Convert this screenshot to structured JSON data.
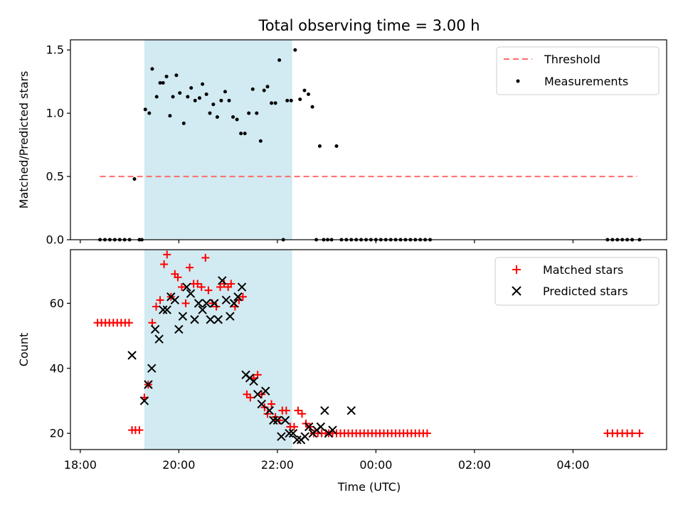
{
  "chart_data": {
    "title": "Total observing time = 3.00 h",
    "xlabel": "Time (UTC)",
    "x_ticks": [
      "18:00",
      "20:00",
      "22:00",
      "00:00",
      "02:00",
      "04:00"
    ],
    "x_ticks_hours": [
      18,
      20,
      22,
      24,
      26,
      28
    ],
    "xlim_hours": [
      17.8,
      29.9
    ],
    "shaded_span_hours": [
      19.3,
      22.3
    ],
    "shade_color": "#add8e6",
    "panels": [
      {
        "type": "scatter",
        "ylabel": "Matched/Predicted stars",
        "ylim": [
          0,
          1.58
        ],
        "y_ticks": [
          0.0,
          0.5,
          1.0,
          1.5
        ],
        "y_tick_labels": [
          "0.0",
          "0.5",
          "1.0",
          "1.5"
        ],
        "legend_position": "top-right",
        "legend": [
          "Threshold",
          "Measurements"
        ],
        "threshold": {
          "name": "Threshold",
          "value": 0.5,
          "x_range_hours": [
            18.4,
            29.3
          ],
          "color": "#ff6b6b",
          "style": "dashed"
        },
        "measurements": {
          "name": "Measurements",
          "color": "#000000",
          "x": [
            18.4,
            18.5,
            18.6,
            18.7,
            18.8,
            18.9,
            19.0,
            19.1,
            19.2,
            19.25,
            19.32,
            19.4,
            19.46,
            19.55,
            19.62,
            19.68,
            19.75,
            19.82,
            19.88,
            19.95,
            20.02,
            20.1,
            20.18,
            20.25,
            20.33,
            20.42,
            20.48,
            20.56,
            20.63,
            20.7,
            20.78,
            20.86,
            20.94,
            21.02,
            21.1,
            21.18,
            21.26,
            21.34,
            21.42,
            21.5,
            21.58,
            21.66,
            21.73,
            21.8,
            21.88,
            21.96,
            22.04,
            22.12,
            22.2,
            22.28,
            22.36,
            22.46,
            22.55,
            22.63,
            22.71,
            22.79,
            22.86,
            22.94,
            23.02,
            23.1,
            23.2,
            23.3,
            23.4,
            23.5,
            23.6,
            23.7,
            23.8,
            23.9,
            24.0,
            24.1,
            24.2,
            24.3,
            24.4,
            24.5,
            24.6,
            24.7,
            24.8,
            24.9,
            25.0,
            25.1,
            28.7,
            28.8,
            28.9,
            29.0,
            29.1,
            29.2,
            29.35
          ],
          "y": [
            0,
            0,
            0,
            0,
            0,
            0,
            0,
            0.48,
            0,
            0,
            1.03,
            1.0,
            1.35,
            1.13,
            1.24,
            1.24,
            1.29,
            0.98,
            1.13,
            1.3,
            1.16,
            0.92,
            1.13,
            1.2,
            1.1,
            1.12,
            1.23,
            1.15,
            1.0,
            1.07,
            0.97,
            1.1,
            1.17,
            1.1,
            0.97,
            0.95,
            0.84,
            0.84,
            1.0,
            1.19,
            1.0,
            0.78,
            1.18,
            1.21,
            1.08,
            1.08,
            1.42,
            0,
            1.1,
            1.1,
            1.5,
            1.11,
            1.18,
            1.15,
            1.05,
            0,
            0.74,
            0,
            0,
            0,
            0.74,
            0,
            0,
            0,
            0,
            0,
            0,
            0,
            0,
            0,
            0,
            0,
            0,
            0,
            0,
            0,
            0,
            0,
            0,
            0,
            0,
            0,
            0,
            0,
            0,
            0,
            0
          ]
        }
      },
      {
        "type": "scatter",
        "ylabel": "Count",
        "ylim": [
          15,
          76.5
        ],
        "y_ticks": [
          20,
          40,
          60
        ],
        "y_tick_labels": [
          "20",
          "40",
          "60"
        ],
        "legend_position": "top-right",
        "legend": [
          "Matched stars",
          "Predicted stars"
        ],
        "series": [
          {
            "name": "Matched stars",
            "marker": "plus",
            "color": "#ff0000",
            "x": [
              18.35,
              18.43,
              18.51,
              18.59,
              18.67,
              18.75,
              18.83,
              18.91,
              18.99,
              19.05,
              19.12,
              19.2,
              19.3,
              19.38,
              19.46,
              19.54,
              19.62,
              19.7,
              19.76,
              19.84,
              19.92,
              19.98,
              20.06,
              20.14,
              20.22,
              20.3,
              20.38,
              20.46,
              20.54,
              20.6,
              20.68,
              20.76,
              20.84,
              20.92,
              21.0,
              21.06,
              21.14,
              21.22,
              21.3,
              21.38,
              21.45,
              21.52,
              21.6,
              21.68,
              21.74,
              21.8,
              21.88,
              21.96,
              22.04,
              22.1,
              22.18,
              22.26,
              22.34,
              22.42,
              22.5,
              22.58,
              22.66,
              22.74,
              22.82,
              22.9,
              22.98,
              23.04,
              23.12,
              23.2,
              23.28,
              23.36,
              23.44,
              23.52,
              23.6,
              23.68,
              23.76,
              23.84,
              23.92,
              24.0,
              24.08,
              24.16,
              24.24,
              24.32,
              24.4,
              24.48,
              24.56,
              24.64,
              24.72,
              24.8,
              24.88,
              24.96,
              25.04,
              28.7,
              28.8,
              28.9,
              29.0,
              29.1,
              29.2,
              29.35
            ],
            "y": [
              54,
              54,
              54,
              54,
              54,
              54,
              54,
              54,
              54,
              21,
              21,
              21,
              31,
              35,
              54,
              59,
              61,
              72,
              75,
              62,
              69,
              68,
              65,
              60,
              71,
              66,
              66,
              65,
              74,
              64,
              60,
              59,
              65,
              66,
              65,
              66,
              59,
              61,
              62,
              32,
              31,
              37,
              38,
              32,
              28,
              26,
              29,
              25,
              24,
              27,
              27,
              22,
              22,
              27,
              26,
              23,
              22,
              20,
              20,
              20,
              20,
              20,
              20,
              20,
              20,
              20,
              20,
              20,
              20,
              20,
              20,
              20,
              20,
              20,
              20,
              20,
              20,
              20,
              20,
              20,
              20,
              20,
              20,
              20,
              20,
              20,
              20,
              20,
              20,
              20,
              20,
              20,
              20,
              20
            ]
          },
          {
            "name": "Predicted stars",
            "marker": "x",
            "color": "#000000",
            "x": [
              19.05,
              19.3,
              19.38,
              19.45,
              19.52,
              19.6,
              19.68,
              19.76,
              19.84,
              19.92,
              20.0,
              20.08,
              20.16,
              20.24,
              20.32,
              20.4,
              20.48,
              20.56,
              20.64,
              20.72,
              20.8,
              20.88,
              20.96,
              21.04,
              21.12,
              21.2,
              21.28,
              21.36,
              21.44,
              21.52,
              21.6,
              21.68,
              21.76,
              21.84,
              21.92,
              22.0,
              22.08,
              22.16,
              22.24,
              22.32,
              22.4,
              22.48,
              22.56,
              22.64,
              22.72,
              22.8,
              22.88,
              22.96,
              23.04,
              23.12,
              23.5
            ],
            "y": [
              44,
              30,
              35,
              40,
              52,
              49,
              58,
              58,
              62,
              61,
              52,
              56,
              65,
              63,
              55,
              60,
              58,
              60,
              55,
              60,
              55,
              67,
              61,
              56,
              60,
              62,
              65,
              38,
              37,
              36,
              32,
              29,
              33,
              27,
              24,
              24,
              19,
              24,
              20,
              20,
              18,
              18,
              19,
              22,
              20,
              21,
              22,
              27,
              20,
              21,
              27
            ]
          }
        ]
      }
    ]
  }
}
